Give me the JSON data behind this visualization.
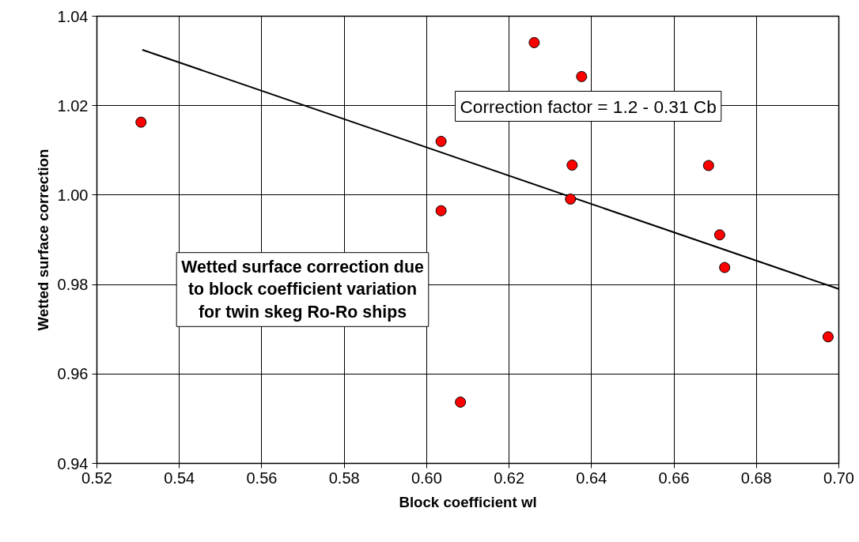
{
  "chart_data": {
    "type": "scatter",
    "xlabel": "Block coefficient wl",
    "ylabel": "Wetted surface correction",
    "xlim": [
      0.52,
      0.7
    ],
    "xticks": [
      {
        "value": 0.52,
        "label": "0.52"
      },
      {
        "value": 0.54,
        "label": "0.54"
      },
      {
        "value": 0.56,
        "label": "0.56"
      },
      {
        "value": 0.58,
        "label": "0.58"
      },
      {
        "value": 0.6,
        "label": "0.60"
      },
      {
        "value": 0.62,
        "label": "0.62"
      },
      {
        "value": 0.64,
        "label": "0.64"
      },
      {
        "value": 0.66,
        "label": "0.66"
      },
      {
        "value": 0.68,
        "label": "0.68"
      },
      {
        "value": 0.7,
        "label": "0.70"
      }
    ],
    "ylim": [
      0.94,
      1.04
    ],
    "yticks": [
      {
        "value": 0.94,
        "label": "0.94"
      },
      {
        "value": 0.96,
        "label": "0.96"
      },
      {
        "value": 0.98,
        "label": "0.98"
      },
      {
        "value": 1.0,
        "label": "1.00"
      },
      {
        "value": 1.02,
        "label": "1.02"
      },
      {
        "value": 1.04,
        "label": "1.04"
      }
    ],
    "grid": true,
    "marker": "circle",
    "series": [
      {
        "color": "#ff0000",
        "x": [
          0.5307,
          0.6035,
          0.6035,
          0.6082,
          0.6261,
          0.6376,
          0.6353,
          0.6349,
          0.6684,
          0.6711,
          0.6723,
          0.6974
        ],
        "values": [
          1.0163,
          1.012,
          0.9965,
          0.9537,
          1.0341,
          1.0265,
          1.0067,
          0.9991,
          1.0066,
          0.9911,
          0.9838,
          0.9683
        ]
      },
      {
        "type": "line",
        "color": "#000000",
        "line_style": "solid",
        "marker": "none",
        "x": [
          0.531,
          0.7
        ],
        "values": [
          1.0325,
          0.979
        ]
      }
    ],
    "annotations": [
      "Correction factor = 1.2 - 0.31 Cb",
      "Wetted surface correction due\nto block coefficient variation\nfor twin skeg Ro-Ro ships"
    ]
  }
}
